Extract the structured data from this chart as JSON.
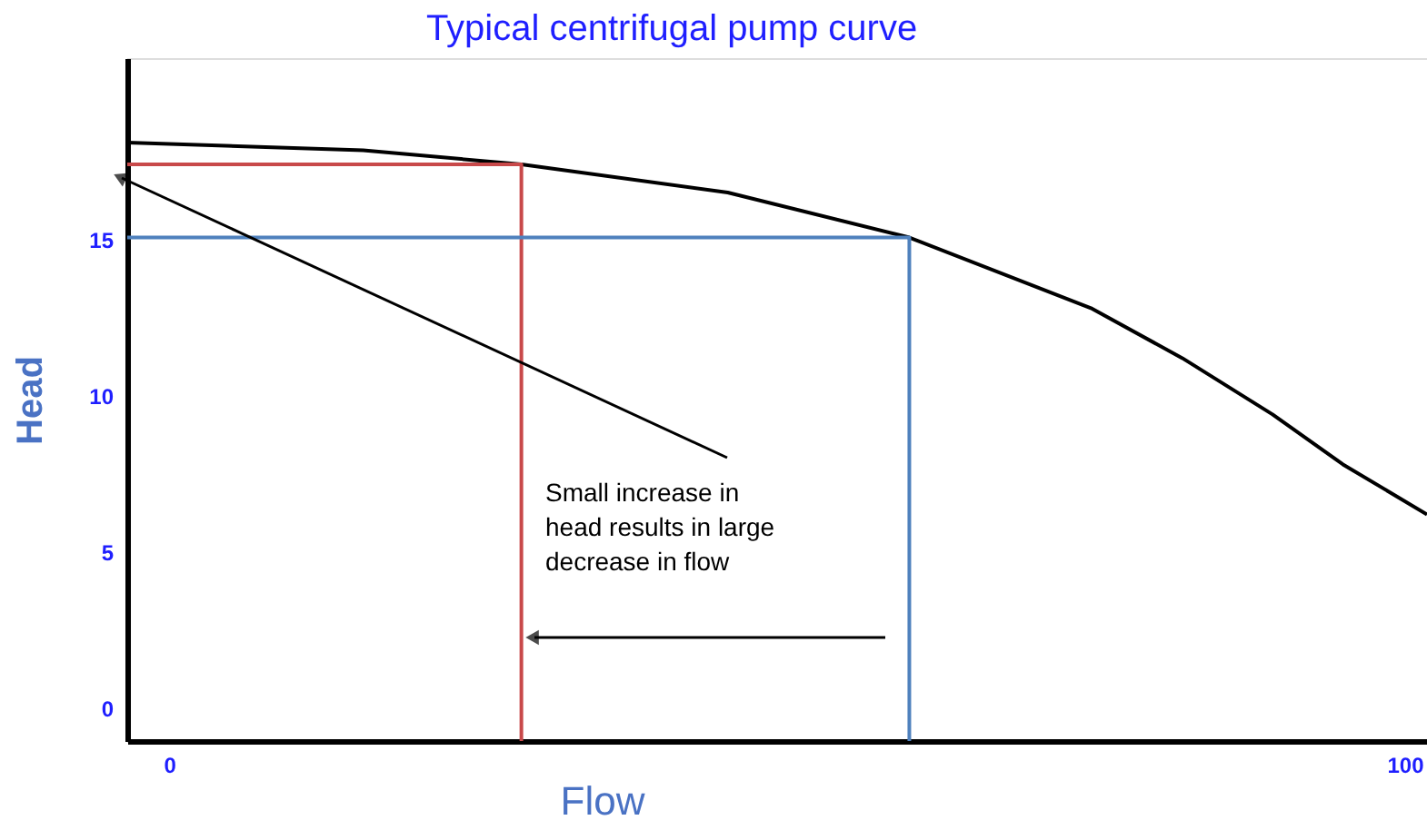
{
  "chart_data": {
    "type": "line",
    "title": "Typical centrifugal pump curve",
    "xlabel": "Flow",
    "ylabel": "Head",
    "xlim": [
      -3.4,
      101.8
    ],
    "ylim": [
      -1.05,
      20.8
    ],
    "xticks": [
      0,
      100
    ],
    "yticks": [
      0,
      5,
      10,
      15
    ],
    "grid": false,
    "marker": "none",
    "line_style": "solid",
    "series": [
      {
        "color": "#000000",
        "x": [
          -3.4,
          15.7,
          28.5,
          45.2,
          59.9,
          74.6,
          82,
          89.3,
          95,
          101.8
        ],
        "values": [
          18.1,
          17.85,
          17.4,
          16.5,
          15.06,
          12.8,
          11.2,
          9.4,
          7.8,
          6.2
        ]
      },
      {
        "color": "#c8494a",
        "x": [
          -3.4,
          28.5,
          28.5
        ],
        "values": [
          17.4,
          17.4,
          -1.05
        ]
      },
      {
        "color": "#4f81bd",
        "x": [
          -3.4,
          59.9,
          59.9
        ],
        "values": [
          15.06,
          15.06,
          -1.05
        ]
      }
    ],
    "annotations": [
      "Small increase in\nhead results in large\ndecrease in flow"
    ]
  }
}
